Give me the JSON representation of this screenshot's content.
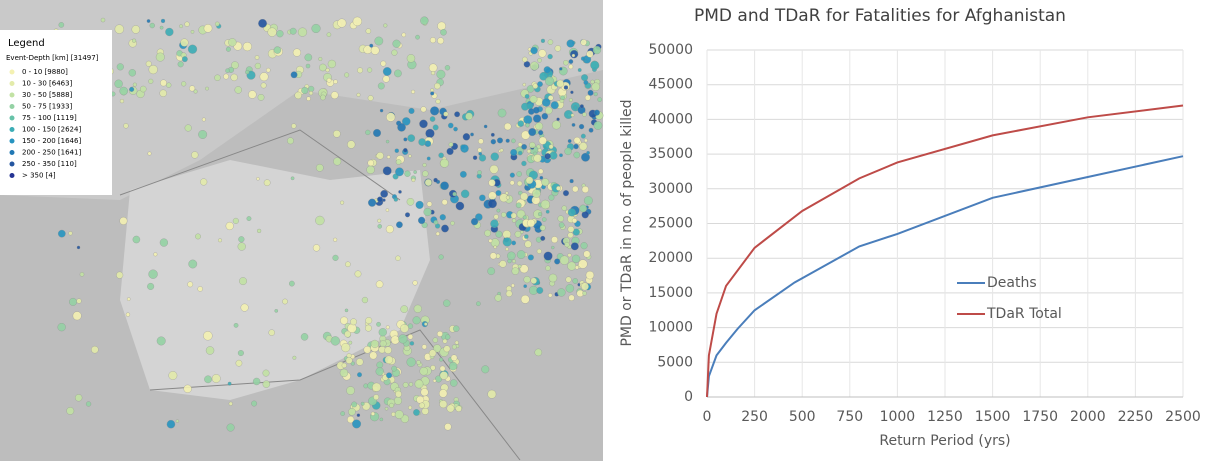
{
  "map": {
    "legend_title": "Legend",
    "legend_subtitle": "Event-Depth [km] [31497]",
    "items": [
      {
        "label": "0 - 10  [9880]",
        "color": "#f4f1b2"
      },
      {
        "label": "10 - 30  [6463]",
        "color": "#e3ebaa"
      },
      {
        "label": "30 - 50  [5888]",
        "color": "#c2e2a4"
      },
      {
        "label": "50 - 75  [1933]",
        "color": "#94d2a4"
      },
      {
        "label": "75 - 100  [1119]",
        "color": "#66c2a8"
      },
      {
        "label": "100 - 150  [2624]",
        "color": "#3cadb6"
      },
      {
        "label": "150 - 200  [1646]",
        "color": "#2794c0"
      },
      {
        "label": "200 - 250  [1641]",
        "color": "#2178b4"
      },
      {
        "label": "250 - 350  [110]",
        "color": "#2456a0"
      },
      {
        "label": "> 350  [4]",
        "color": "#253494"
      }
    ]
  },
  "chart_data": {
    "type": "line",
    "title": "PMD and TDaR for Fatalities for Afghanistan",
    "x_label": "Return Period (yrs)",
    "y_label": "PMD or TDaR in no. of people killed",
    "xlim": [
      0,
      2500
    ],
    "xticks": [
      0,
      250,
      500,
      750,
      1000,
      1250,
      1500,
      1750,
      2000,
      2250,
      2500
    ],
    "ylim": [
      0,
      50000
    ],
    "yticks": [
      0,
      5000,
      10000,
      15000,
      20000,
      25000,
      30000,
      35000,
      40000,
      45000,
      50000
    ],
    "grid": true,
    "series": [
      {
        "name": "Deaths",
        "color": "#4a7ebb",
        "x": [
          0,
          10,
          50,
          100,
          160,
          250,
          460,
          800,
          1000,
          1500,
          2000,
          2500
        ],
        "values": [
          0,
          3000,
          6000,
          7800,
          9800,
          12500,
          16500,
          21700,
          23500,
          28700,
          31700,
          34700
        ]
      },
      {
        "name": "TDaR Total",
        "color": "#be4b48",
        "x": [
          0,
          10,
          50,
          100,
          250,
          500,
          800,
          1000,
          1500,
          2000,
          2500
        ],
        "values": [
          0,
          6000,
          12000,
          16000,
          21500,
          26800,
          31500,
          33800,
          37700,
          40300,
          42000
        ]
      }
    ]
  }
}
